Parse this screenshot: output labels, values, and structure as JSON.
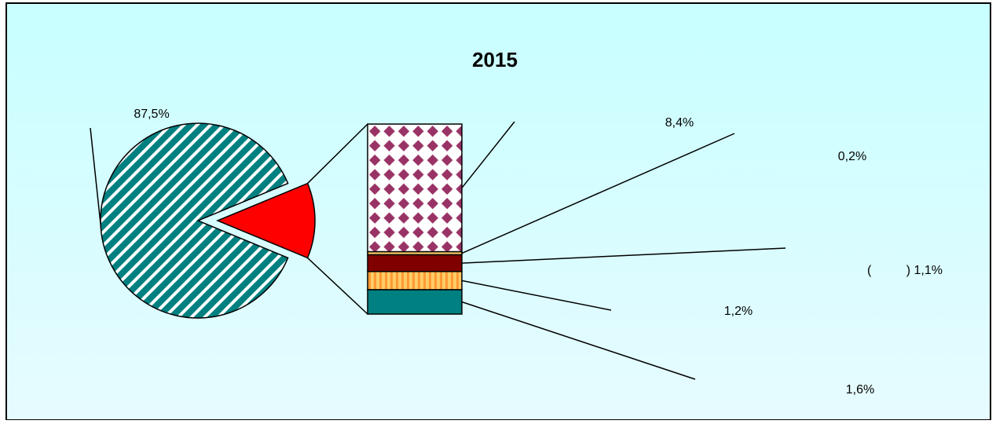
{
  "chart_data": {
    "type": "bar_of_pie",
    "title": "2015",
    "categories": [
      null,
      null,
      null,
      null,
      null,
      null
    ],
    "values": [
      87.5,
      8.4,
      0.2,
      1.1,
      1.2,
      1.6
    ],
    "value_labels": [
      "87,5%",
      "8,4%",
      "0,2%",
      "(          ) 1,1%",
      "1,2%",
      "1,6%"
    ],
    "colors": [
      "#008080",
      "#993366",
      "#ffcc66",
      "#800000",
      "#ff9933",
      "#008080"
    ],
    "other_color": "#ff0000",
    "split_index": 1
  }
}
